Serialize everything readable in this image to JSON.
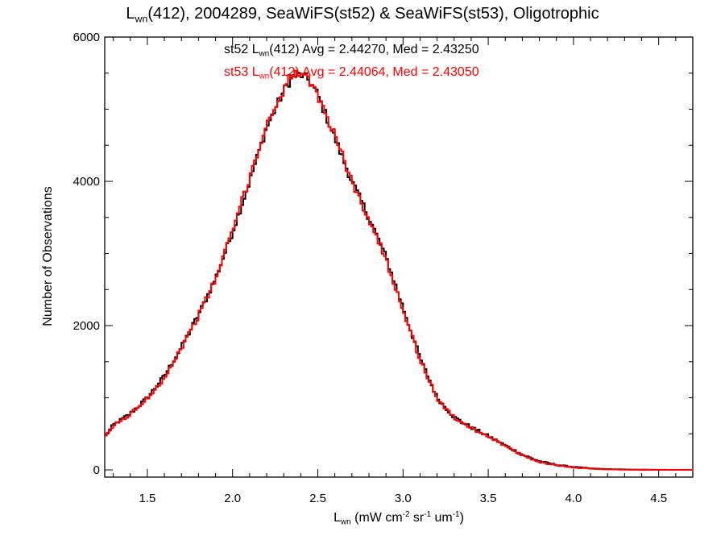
{
  "colors": {
    "st52": "#000000",
    "st53": "#ff0000",
    "axis": "#000000",
    "background": "#ffffff"
  },
  "chart_data": {
    "type": "line",
    "title": {
      "main": "L",
      "sub": "wn",
      "rest": "(412), 2004289, SeaWiFS(st52) & SeaWiFS(st53), Oligotrophic"
    },
    "xlabel": {
      "main": "L",
      "sub": "wn",
      "p1": " (mW cm",
      "e1": "-2",
      "p2": " sr",
      "e2": "-1",
      "p3": " um",
      "e3": "-1",
      "p4": ")"
    },
    "ylabel": "Number of Observations",
    "xlim": [
      1.25,
      4.7
    ],
    "ylim": [
      -100,
      6000
    ],
    "x_ticks": [
      1.5,
      2.0,
      2.5,
      3.0,
      3.5,
      4.0,
      4.5
    ],
    "x_tick_labels": [
      "1.5",
      "2.0",
      "2.5",
      "3.0",
      "3.5",
      "4.0",
      "4.5"
    ],
    "y_ticks": [
      0,
      2000,
      4000,
      6000
    ],
    "y_tick_labels": [
      "0",
      "2000",
      "4000",
      "6000"
    ],
    "style": "histogram-step",
    "annotations": [
      {
        "pre": "st52 L",
        "sub": "wn",
        "post": "(412) Avg = 2.44270, Med = 2.43250",
        "color": "#000000"
      },
      {
        "pre": "st53 L",
        "sub": "wn",
        "post": "(412) Avg = 2.44064, Med = 2.43050",
        "color": "#ff0000"
      }
    ],
    "x": [
      1.25,
      1.3,
      1.4,
      1.5,
      1.6,
      1.7,
      1.8,
      1.9,
      2.0,
      2.1,
      2.2,
      2.3,
      2.35,
      2.4,
      2.45,
      2.5,
      2.6,
      2.7,
      2.8,
      2.9,
      3.0,
      3.1,
      3.2,
      3.3,
      3.4,
      3.5,
      3.6,
      3.7,
      3.8,
      3.9,
      4.0,
      4.1,
      4.2,
      4.3,
      4.4,
      4.5,
      4.6,
      4.7
    ],
    "series": [
      {
        "name": "st52",
        "color": "#000000",
        "values": [
          450,
          620,
          780,
          1000,
          1300,
          1700,
          2150,
          2650,
          3300,
          4000,
          4750,
          5250,
          5450,
          5480,
          5400,
          5200,
          4600,
          4000,
          3500,
          2950,
          2250,
          1550,
          1000,
          730,
          590,
          470,
          340,
          210,
          120,
          70,
          40,
          20,
          10,
          5,
          2,
          1,
          0,
          0
        ]
      },
      {
        "name": "st53",
        "color": "#ff0000",
        "values": [
          440,
          610,
          770,
          990,
          1280,
          1690,
          2140,
          2640,
          3320,
          4050,
          4780,
          5280,
          5500,
          5470,
          5380,
          5180,
          4650,
          3990,
          3480,
          2920,
          2230,
          1530,
          990,
          720,
          580,
          470,
          330,
          200,
          110,
          65,
          35,
          18,
          8,
          4,
          2,
          1,
          0,
          0
        ]
      }
    ]
  }
}
